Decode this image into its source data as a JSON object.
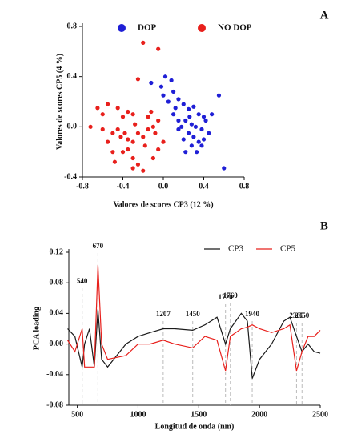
{
  "chart_data": [
    {
      "type": "scatter",
      "panel": "A",
      "x_label": "Valores de scores CP3 (12 %)",
      "y_label": "Valores de scores CP5 (4 %)",
      "xlim": [
        -0.8,
        0.8
      ],
      "xticks": [
        -0.8,
        -0.4,
        {
          "value": 0,
          "label": "0.0"
        },
        0.4,
        0.8
      ],
      "ylim": [
        -0.4,
        0.8
      ],
      "yticks": [
        -0.4,
        {
          "value": 0,
          "label": "0.0"
        },
        0.4,
        0.8
      ],
      "series": [
        {
          "name": "DOP",
          "color": "#1f1fd6",
          "x": [
            -0.12,
            0.02,
            0.08,
            -0.02,
            0.1,
            0.0,
            0.05,
            0.15,
            0.2,
            0.12,
            0.25,
            0.3,
            0.35,
            0.4,
            0.22,
            0.28,
            0.18,
            0.32,
            0.38,
            0.25,
            0.3,
            0.2,
            0.35,
            0.28,
            0.4,
            0.45,
            0.42,
            0.55,
            0.6,
            0.15,
            0.22,
            0.33,
            0.48,
            0.1,
            0.26,
            0.38,
            0.15
          ],
          "values": [
            0.35,
            0.4,
            0.37,
            0.32,
            0.28,
            0.25,
            0.2,
            0.22,
            0.18,
            0.15,
            0.14,
            0.16,
            0.1,
            0.08,
            0.05,
            0.02,
            0.0,
            0.0,
            -0.02,
            -0.05,
            -0.08,
            -0.1,
            -0.12,
            -0.15,
            -0.1,
            -0.05,
            0.05,
            0.25,
            -0.33,
            -0.02,
            -0.2,
            -0.2,
            0.1,
            0.1,
            0.08,
            -0.15,
            0.05
          ]
        },
        {
          "name": "NO DOP",
          "color": "#e8201c",
          "x": [
            -0.2,
            -0.05,
            -0.25,
            -0.55,
            -0.6,
            -0.45,
            -0.4,
            -0.35,
            -0.3,
            -0.72,
            -0.6,
            -0.5,
            -0.45,
            -0.42,
            -0.38,
            -0.35,
            -0.3,
            -0.25,
            -0.2,
            -0.15,
            -0.1,
            -0.05,
            -0.15,
            -0.28,
            -0.55,
            -0.5,
            -0.4,
            -0.3,
            -0.25,
            -0.3,
            -0.2,
            -0.1,
            -0.05,
            0.0,
            -0.08,
            -0.12,
            -0.65,
            -0.48,
            -0.18,
            -0.35
          ],
          "values": [
            0.67,
            0.62,
            0.38,
            0.18,
            0.1,
            0.15,
            0.08,
            0.12,
            0.1,
            0.0,
            -0.02,
            -0.05,
            -0.02,
            -0.08,
            -0.05,
            -0.1,
            -0.12,
            -0.05,
            -0.08,
            -0.02,
            0.0,
            0.05,
            0.08,
            0.02,
            -0.12,
            -0.2,
            -0.2,
            -0.25,
            -0.3,
            -0.33,
            -0.35,
            -0.25,
            -0.18,
            -0.12,
            -0.05,
            0.12,
            0.15,
            -0.28,
            -0.15,
            -0.18
          ]
        }
      ]
    },
    {
      "type": "line",
      "panel": "B",
      "x_label": "Longitud de onda (nm)",
      "y_label": "PCA loading",
      "xlim": [
        430,
        2500
      ],
      "xticks": [
        500,
        1000,
        1500,
        2000,
        2500
      ],
      "ylim": [
        -0.08,
        0.12
      ],
      "yticks": [
        -0.08,
        -0.04,
        {
          "value": 0,
          "label": "0.00"
        },
        0.04,
        0.08,
        0.12
      ],
      "marked_wavelengths": [
        540,
        670,
        1207,
        1450,
        1720,
        1760,
        1940,
        2305,
        2350
      ],
      "x": [
        420,
        480,
        540,
        560,
        600,
        640,
        670,
        700,
        750,
        900,
        1000,
        1100,
        1207,
        1300,
        1450,
        1550,
        1650,
        1720,
        1760,
        1850,
        1900,
        1940,
        2000,
        2100,
        2200,
        2250,
        2305,
        2350,
        2400,
        2450,
        2500
      ],
      "series": [
        {
          "name": "CP3",
          "color": "#1a1a1a",
          "values": [
            0.02,
            0.01,
            -0.03,
            0.0,
            0.02,
            -0.03,
            0.045,
            -0.02,
            -0.03,
            0.0,
            0.01,
            0.015,
            0.02,
            0.02,
            0.018,
            0.025,
            0.035,
            0.0,
            0.02,
            0.04,
            0.03,
            -0.045,
            -0.02,
            0.0,
            0.03,
            0.035,
            0.01,
            -0.01,
            0.0,
            -0.01,
            -0.012
          ]
        },
        {
          "name": "CP5",
          "color": "#e8201c",
          "values": [
            0.005,
            -0.01,
            0.02,
            -0.03,
            -0.03,
            -0.03,
            0.103,
            0.0,
            -0.02,
            -0.015,
            0.0,
            0.0,
            0.005,
            0.0,
            -0.005,
            0.01,
            0.005,
            -0.035,
            0.01,
            0.02,
            0.022,
            0.025,
            0.02,
            0.015,
            0.02,
            0.025,
            -0.035,
            -0.01,
            0.01,
            0.01,
            0.018
          ]
        }
      ]
    }
  ]
}
